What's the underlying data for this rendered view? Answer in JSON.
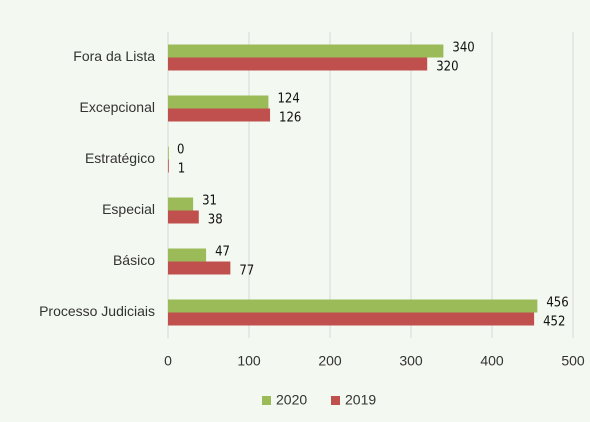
{
  "chart_data": {
    "type": "barh",
    "categories": [
      "Fora da Lista",
      "Excepcional",
      "Estratégico",
      "Especial",
      "Básico",
      "Processo Judiciais"
    ],
    "series": [
      {
        "name": "2020",
        "color": "#9bbb59",
        "values": [
          340,
          124,
          0,
          31,
          47,
          456
        ]
      },
      {
        "name": "2019",
        "color": "#c0504d",
        "values": [
          320,
          126,
          1,
          38,
          77,
          452
        ]
      }
    ],
    "xlim": [
      0,
      500
    ],
    "xticks": [
      0,
      100,
      200,
      300,
      400,
      500
    ],
    "grid": true,
    "legend": "bottom"
  }
}
